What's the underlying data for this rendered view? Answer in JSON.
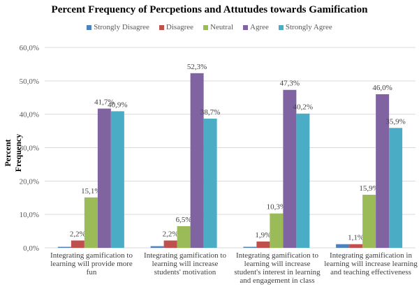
{
  "chart_data": {
    "type": "bar",
    "title": "Percent Frequency of Percpetions and Attutudes towards Gamification",
    "xlabel": "",
    "ylabel": "Percent Frequency",
    "ylim": [
      0,
      60
    ],
    "yticks": [
      0,
      10,
      20,
      30,
      40,
      50,
      60
    ],
    "ytick_labels": [
      "0,0%",
      "10,0%",
      "20,0%",
      "30,0%",
      "40,0%",
      "50,0%",
      "60,0%"
    ],
    "grid": true,
    "legend_position": "top",
    "categories": [
      "Integrating gamification to learning will provide more fun",
      "Integrating gamification to learning will increase students' motivation",
      "Integrating gamification to learning will increase student's interest in learning and engagement in class",
      "Integrating gamification in learning will increase learning and teaching effectiveness"
    ],
    "series": [
      {
        "name": "Strongly Disagree",
        "color": "#4F81BD",
        "values": [
          0.3,
          0.5,
          0.3,
          1.1
        ],
        "labels": [
          "",
          "",
          "",
          ""
        ]
      },
      {
        "name": "Disagree",
        "color": "#C0504D",
        "values": [
          2.2,
          2.2,
          1.9,
          1.1
        ],
        "labels": [
          "2,2%",
          "2,2%",
          "1,9%",
          "1,1%"
        ]
      },
      {
        "name": "Neutral",
        "color": "#9BBB59",
        "values": [
          15.1,
          6.5,
          10.3,
          15.9
        ],
        "labels": [
          "15,1%",
          "6,5%",
          "10,3%",
          "15,9%"
        ]
      },
      {
        "name": "Agree",
        "color": "#8064A2",
        "values": [
          41.7,
          52.3,
          47.3,
          46.0
        ],
        "labels": [
          "41,7%",
          "52,3%",
          "47,3%",
          "46,0%"
        ]
      },
      {
        "name": "Strongly Agree",
        "color": "#4BACC6",
        "values": [
          40.9,
          38.7,
          40.2,
          35.9
        ],
        "labels": [
          "40,9%",
          "38,7%",
          "40,2%",
          "35,9%"
        ]
      }
    ]
  }
}
